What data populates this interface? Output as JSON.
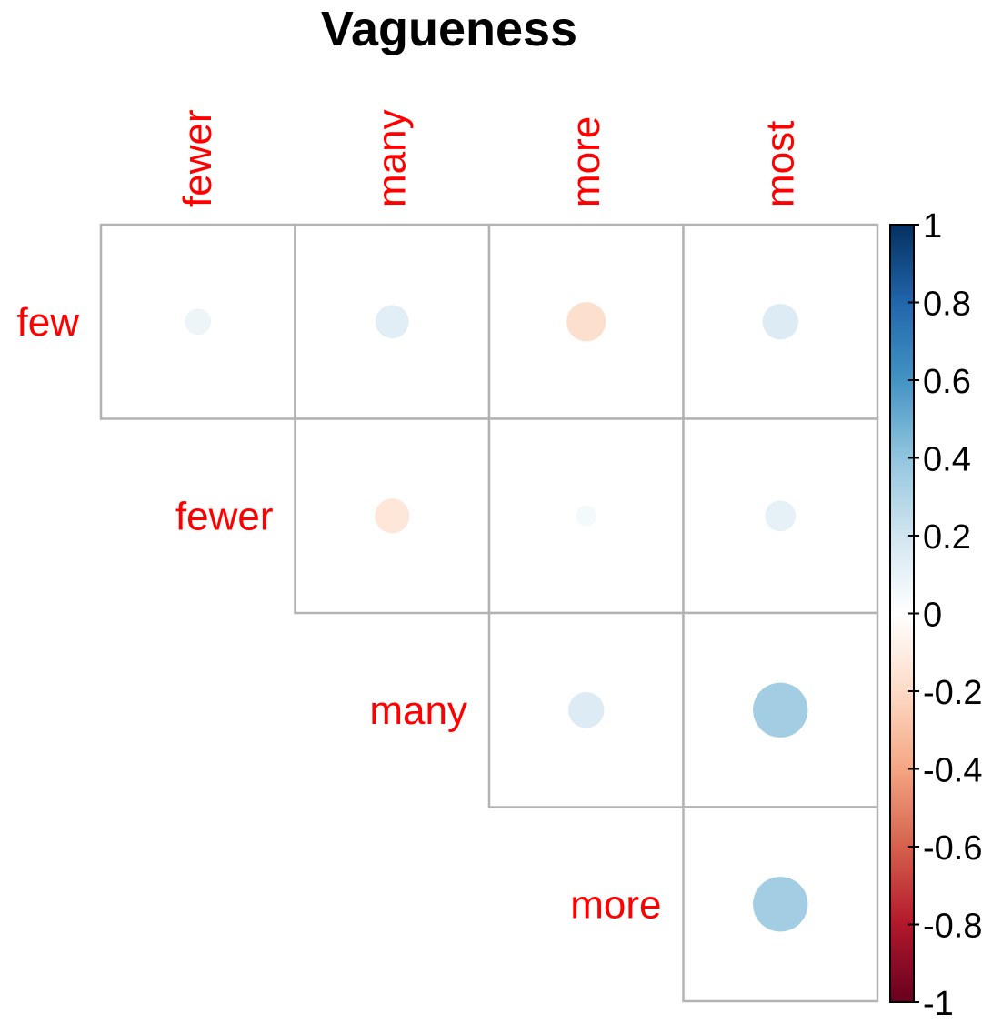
{
  "chart_data": {
    "type": "heatmap",
    "title": "Vagueness",
    "row_labels": [
      "few",
      "fewer",
      "many",
      "more"
    ],
    "col_labels": [
      "fewer",
      "many",
      "more",
      "most"
    ],
    "cells": [
      {
        "row": "few",
        "col": "fewer",
        "value": 0.08
      },
      {
        "row": "few",
        "col": "many",
        "value": 0.13
      },
      {
        "row": "few",
        "col": "more",
        "value": -0.18
      },
      {
        "row": "few",
        "col": "most",
        "value": 0.15
      },
      {
        "row": "fewer",
        "col": "many",
        "value": -0.14
      },
      {
        "row": "fewer",
        "col": "more",
        "value": 0.05
      },
      {
        "row": "fewer",
        "col": "most",
        "value": 0.11
      },
      {
        "row": "many",
        "col": "more",
        "value": 0.15
      },
      {
        "row": "many",
        "col": "most",
        "value": 0.35
      },
      {
        "row": "more",
        "col": "most",
        "value": 0.35
      }
    ],
    "colorbar": {
      "ticks": [
        "1",
        "0.8",
        "0.6",
        "0.4",
        "0.2",
        "0",
        "-0.2",
        "-0.4",
        "-0.6",
        "-0.8",
        "-1"
      ],
      "range": [
        -1,
        1
      ],
      "colors": [
        "#67001F",
        "#B2182B",
        "#D6604D",
        "#F4A582",
        "#FDDBC7",
        "#FFFFFF",
        "#D1E5F0",
        "#92C5DE",
        "#4393C3",
        "#2166AC",
        "#053061"
      ]
    },
    "label_color": "#FF0000",
    "grid_color": "#B3B3B3",
    "title_color": "#000000",
    "tick_color": "#000000"
  }
}
